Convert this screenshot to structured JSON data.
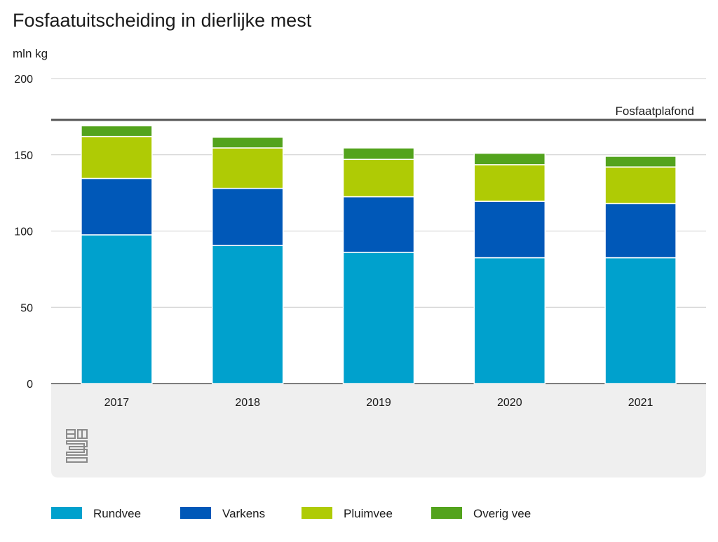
{
  "chart_data": {
    "type": "bar",
    "stacked": true,
    "title": "Fosfaatuitscheiding in dierlijke mest",
    "ylabel": "mln kg",
    "xlabel": "",
    "categories": [
      "2017",
      "2018",
      "2019",
      "2020",
      "2021"
    ],
    "series": [
      {
        "name": "Rundvee",
        "values": [
          97.5,
          90.5,
          86,
          82.5,
          82.5
        ]
      },
      {
        "name": "Varkens",
        "values": [
          37,
          37.5,
          36.5,
          37,
          35.5
        ]
      },
      {
        "name": "Pluimvee",
        "values": [
          27.5,
          26.5,
          24.5,
          24,
          24
        ]
      },
      {
        "name": "Overig vee",
        "values": [
          7,
          7,
          7.5,
          7.5,
          7
        ]
      }
    ],
    "ylim": [
      0,
      200
    ],
    "yticks": [
      0,
      50,
      100,
      150,
      200
    ],
    "grid": true,
    "legend_position": "bottom",
    "reference_line": {
      "label": "Fosfaatplafond",
      "value": 172.9
    },
    "colors": {
      "Rundvee": "#00a1cd",
      "Varkens": "#0058b8",
      "Pluimvee": "#afcb05",
      "Overig vee": "#53a31d"
    },
    "gridline_color": "#cccccc",
    "reference_line_color": "#555555",
    "footer_background": "#efefef",
    "logo_icon": "cbs-logo-icon"
  }
}
